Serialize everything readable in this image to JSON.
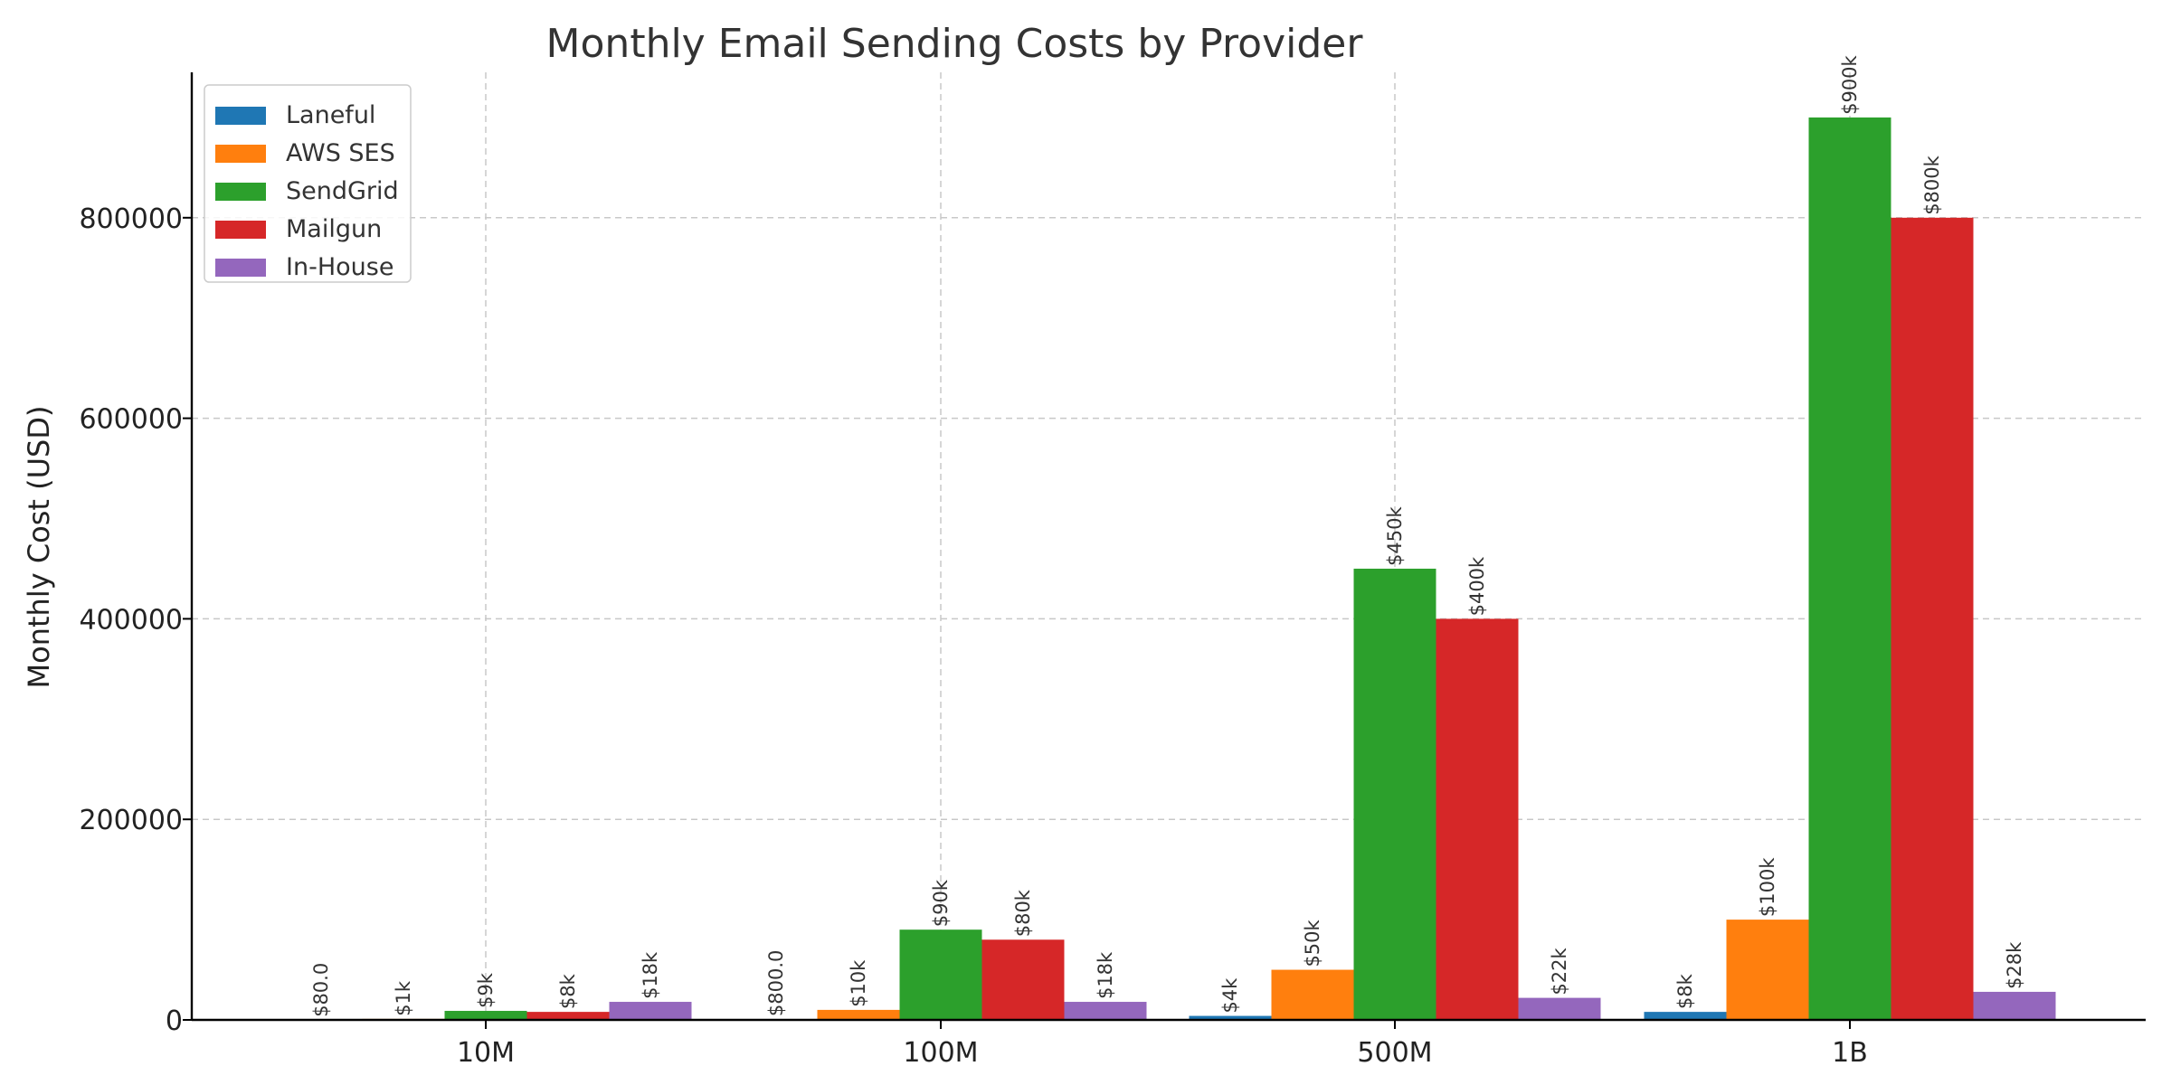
{
  "chart_data": {
    "type": "bar",
    "title": "Monthly Email Sending Costs by Provider",
    "xlabel": "",
    "ylabel": "Monthly Cost (USD)",
    "categories": [
      "10M",
      "100M",
      "500M",
      "1B"
    ],
    "ylim": [
      0,
      945000
    ],
    "yticks": [
      0,
      200000,
      400000,
      600000,
      800000
    ],
    "grid": true,
    "legend_position": "top-left",
    "series": [
      {
        "name": "Laneful",
        "color": "#1f77b4",
        "values": [
          80,
          800,
          4000,
          8000
        ],
        "labels": [
          "$80.0",
          "$800.0",
          "$4k",
          "$8k"
        ]
      },
      {
        "name": "AWS SES",
        "color": "#ff7f0e",
        "values": [
          1000,
          10000,
          50000,
          100000
        ],
        "labels": [
          "$1k",
          "$10k",
          "$50k",
          "$100k"
        ]
      },
      {
        "name": "SendGrid",
        "color": "#2ca02c",
        "values": [
          9000,
          90000,
          450000,
          900000
        ],
        "labels": [
          "$9k",
          "$90k",
          "$450k",
          "$900k"
        ]
      },
      {
        "name": "Mailgun",
        "color": "#d62728",
        "values": [
          8000,
          80000,
          400000,
          800000
        ],
        "labels": [
          "$8k",
          "$80k",
          "$400k",
          "$800k"
        ]
      },
      {
        "name": "In-House",
        "color": "#9467bd",
        "values": [
          18000,
          18000,
          22000,
          28000
        ],
        "labels": [
          "$18k",
          "$18k",
          "$22k",
          "$28k"
        ]
      }
    ]
  }
}
